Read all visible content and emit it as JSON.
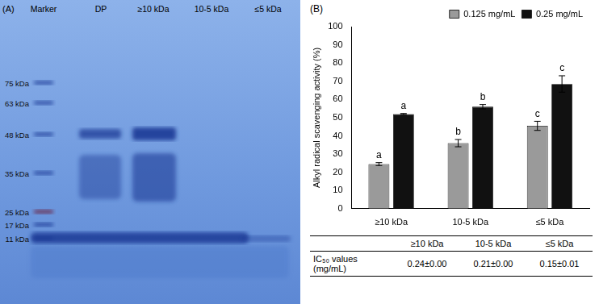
{
  "gel": {
    "panel_label": "(A)",
    "lanes": [
      "Marker",
      "DP",
      "≥10 kDa",
      "10-5 kDa",
      "≤5 kDa"
    ],
    "marker_labels": [
      "75 kDa",
      "63 kDa",
      "48 kDa",
      "35 kDa",
      "25 kDa",
      "17 kDa",
      "11 kDa"
    ]
  },
  "chart_data": {
    "type": "bar",
    "panel_label": "(B)",
    "y_label": "Alkyl radical scavenging activity (%)",
    "categories": [
      "≥10 kDa",
      "10-5 kDa",
      "≤5 kDa"
    ],
    "series": [
      {
        "name": "0.125 mg/mL",
        "color": "#9a9a9a",
        "values": [
          24.5,
          36,
          45.5
        ],
        "errors": [
          0.8,
          2,
          2.5
        ],
        "letters": [
          "a",
          "b",
          "c"
        ]
      },
      {
        "name": "0.25 mg/mL",
        "color": "#111111",
        "values": [
          52,
          56,
          68.5
        ],
        "errors": [
          0.3,
          1.2,
          4.5
        ],
        "letters": [
          "a",
          "b",
          "c"
        ]
      }
    ],
    "ylim": [
      0,
      100
    ],
    "yticks": [
      0,
      10,
      20,
      30,
      40,
      50,
      60,
      70,
      80,
      90,
      100
    ],
    "grid": false,
    "legend": "top"
  },
  "table": {
    "columns": [
      "≥10 kDa",
      "10-5 kDa",
      "≤5 kDa"
    ],
    "row_label": "IC₅₀ values (mg/mL)",
    "values": [
      "0.24±0.00",
      "0.21±0.00",
      "0.15±0.01"
    ]
  }
}
